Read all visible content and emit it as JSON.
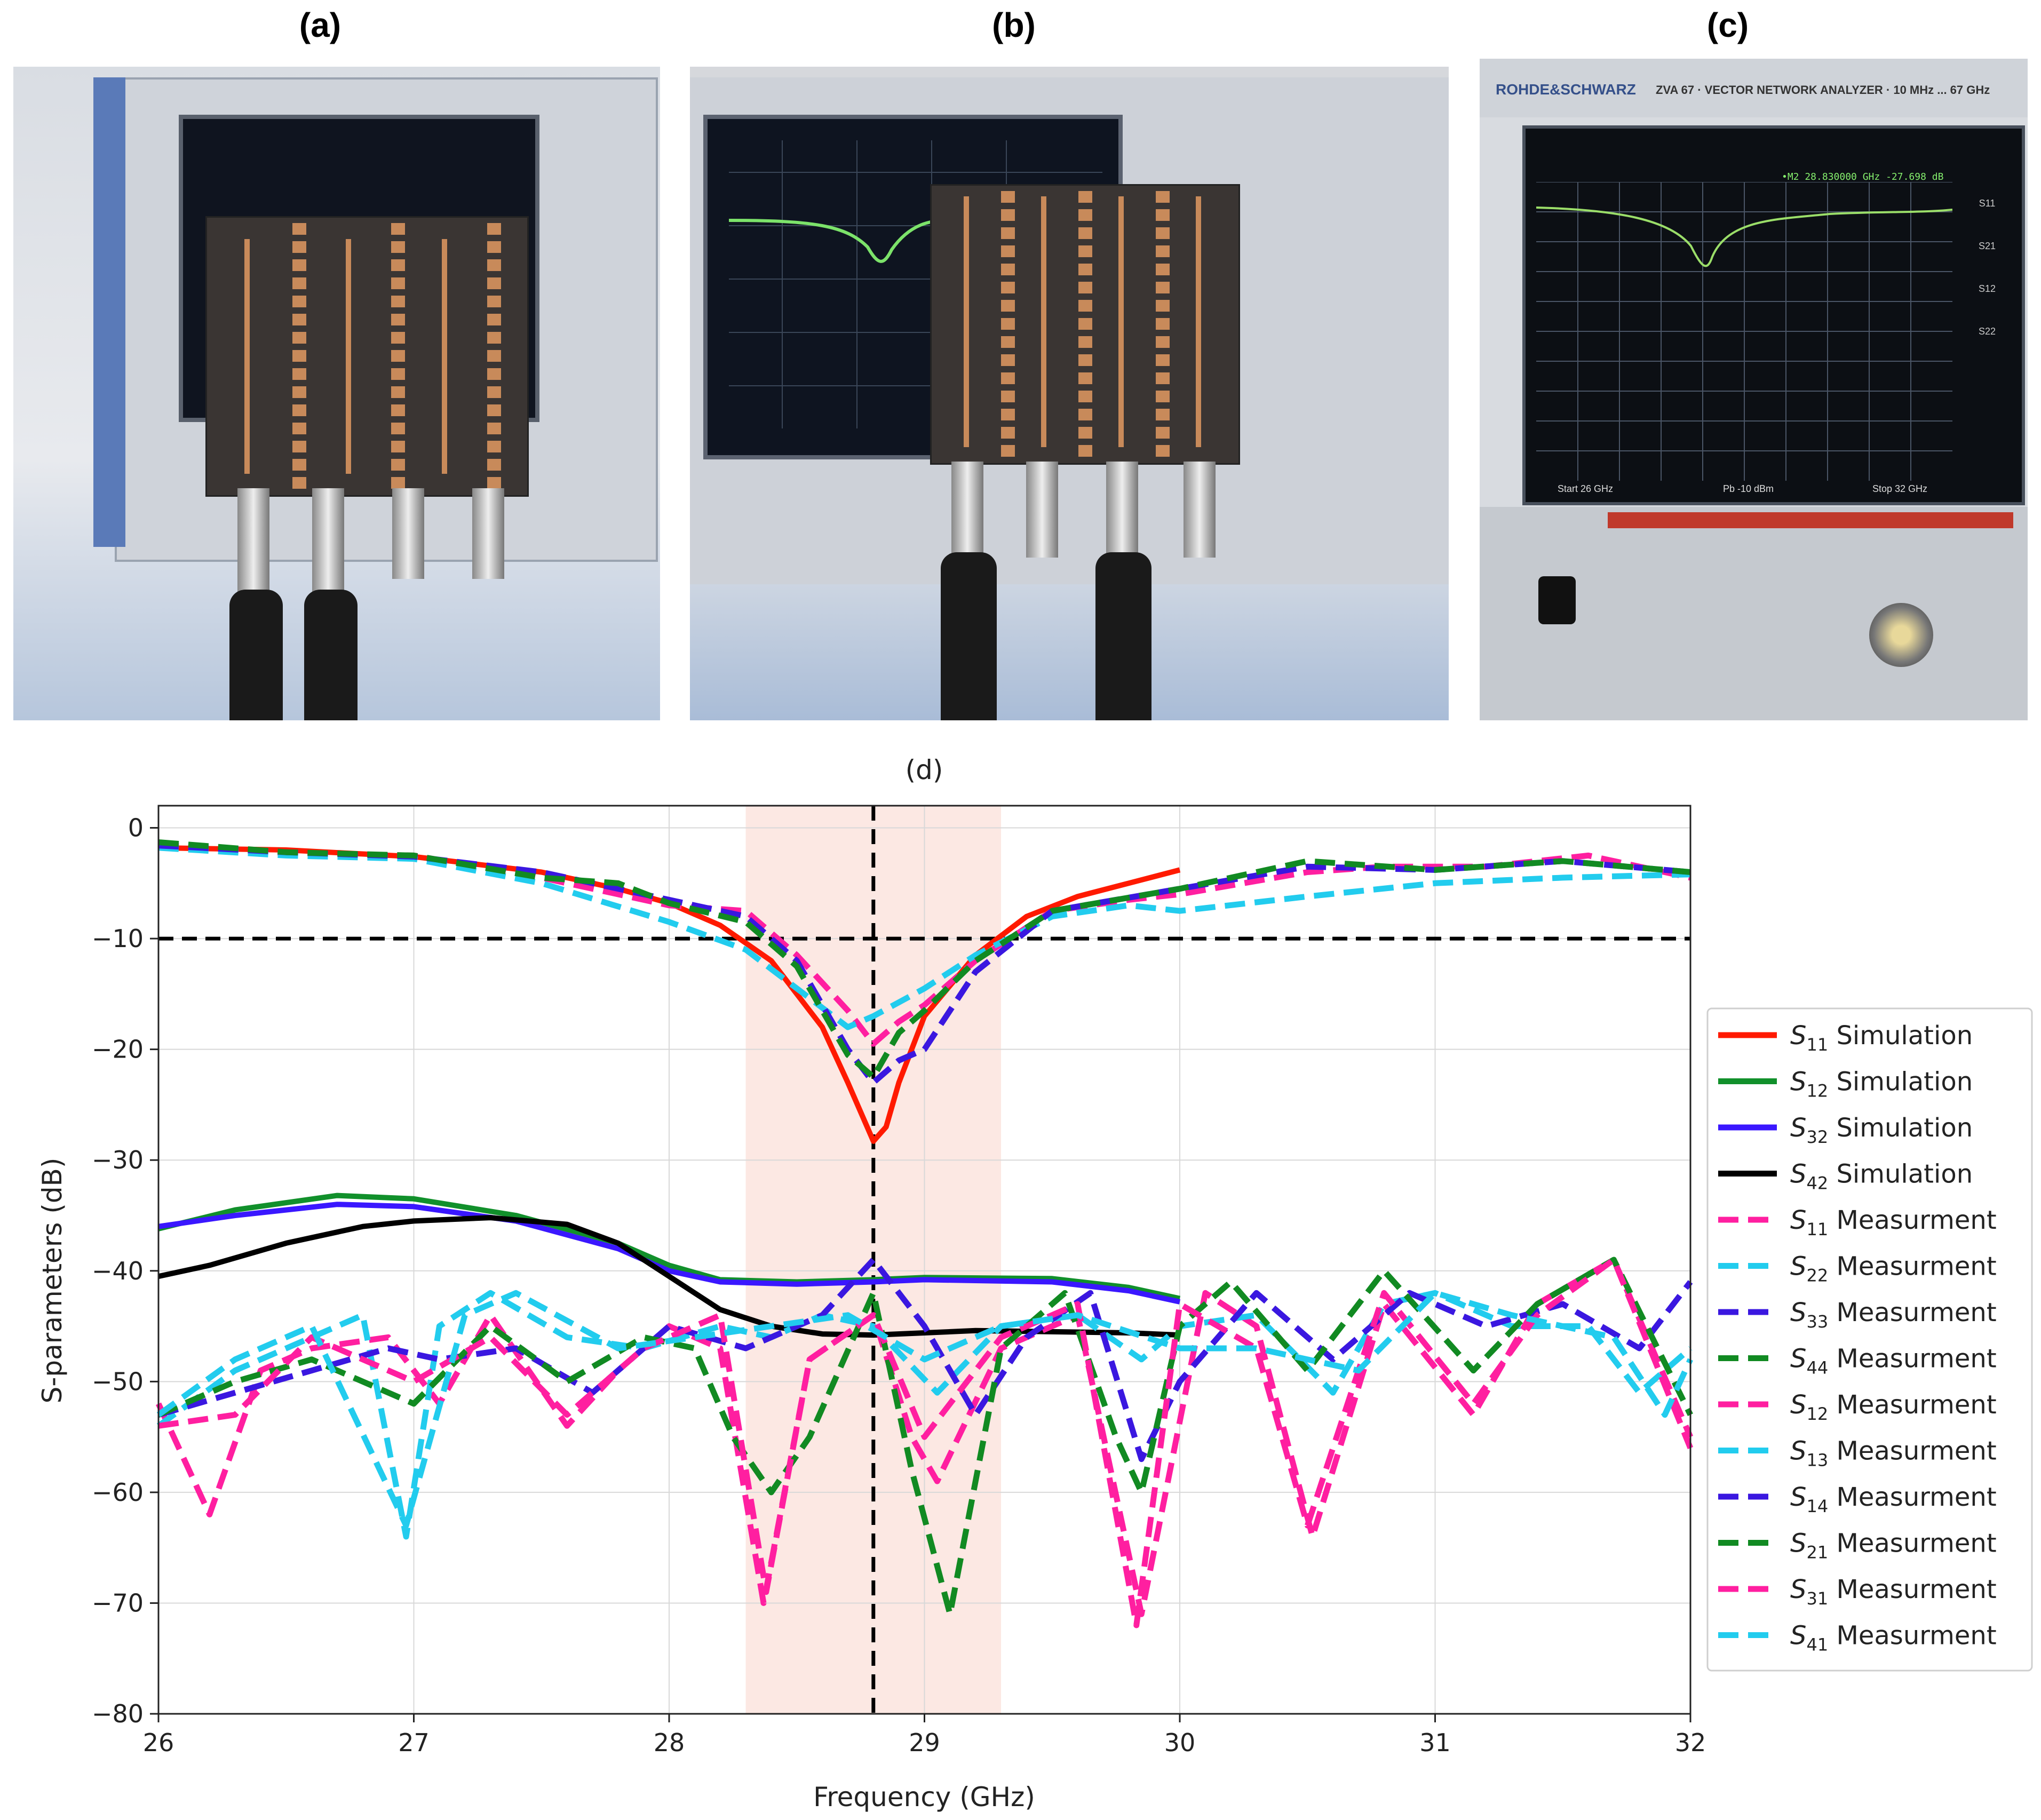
{
  "panels": {
    "a": {
      "label": "(a)"
    },
    "b": {
      "label": "(b)"
    },
    "c": {
      "label": "(c)"
    },
    "d": {
      "label": "(d)"
    }
  },
  "vna_screen": {
    "brand": "ROHDE&SCHWARZ",
    "model": "ZVA 67  ·  VECTOR NETWORK ANALYZER  ·  10 MHz ... 67 GHz",
    "marker": "•M2  28.830000 GHz  -27.698 dB",
    "start": "Start  26 GHz",
    "power": "Pb  -10 dBm",
    "stop": "Stop  32 GHz",
    "side_buttons": [
      "S11",
      "S21",
      "S12",
      "S22"
    ]
  },
  "colors": {
    "red": "#ff1a00",
    "green": "#11902b",
    "blue": "#3a17ff",
    "black": "#000000",
    "magenta": "#ff1fa0",
    "cyan": "#22ccee",
    "darkblue": "#3a17e0",
    "darkgreen": "#118a22",
    "band": "#fbe2dc"
  },
  "chart_data": {
    "type": "line",
    "title": "(d)",
    "xlabel": "Frequency (GHz)",
    "ylabel": "S-parameters (dB)",
    "xlim": [
      26,
      32
    ],
    "ylim": [
      -80,
      2
    ],
    "xticks": [
      26,
      27,
      28,
      29,
      30,
      31,
      32
    ],
    "yticks": [
      0,
      -10,
      -20,
      -30,
      -40,
      -50,
      -60,
      -70,
      -80
    ],
    "tick_labels_y": [
      "0",
      "−10",
      "−20",
      "−30",
      "−40",
      "−50",
      "−60",
      "−70",
      "−80"
    ],
    "tick_labels_x": [
      "26",
      "27",
      "28",
      "29",
      "30",
      "31",
      "32"
    ],
    "grid": true,
    "legend_position": "right",
    "shaded_band": [
      28.3,
      29.3
    ],
    "vline_x": 28.8,
    "hline_y": -10,
    "series": [
      {
        "name": "Simulation",
        "sub": "11",
        "style": "solid",
        "color": "red",
        "x": [
          26.0,
          26.5,
          27.0,
          27.5,
          27.8,
          28.0,
          28.2,
          28.4,
          28.6,
          28.7,
          28.8,
          28.85,
          28.9,
          29.0,
          29.2,
          29.4,
          29.6,
          29.8,
          30.0
        ],
        "y": [
          -1.8,
          -2.0,
          -2.6,
          -4.0,
          -5.5,
          -6.8,
          -8.8,
          -12,
          -18,
          -23,
          -28.3,
          -27,
          -23,
          -17,
          -11.5,
          -8,
          -6.2,
          -5,
          -3.8
        ]
      },
      {
        "name": "Simulation",
        "sub": "12",
        "style": "solid",
        "color": "green",
        "x": [
          26.0,
          26.3,
          26.7,
          27.0,
          27.4,
          27.8,
          28.0,
          28.2,
          28.5,
          28.8,
          29.0,
          29.5,
          29.8,
          30.0
        ],
        "y": [
          -36.2,
          -34.5,
          -33.2,
          -33.5,
          -35,
          -37.5,
          -39.5,
          -40.8,
          -41.0,
          -40.8,
          -40.6,
          -40.7,
          -41.5,
          -42.5
        ]
      },
      {
        "name": "Simulation",
        "sub": "32",
        "style": "solid",
        "color": "blue",
        "x": [
          26.0,
          26.3,
          26.7,
          27.0,
          27.4,
          27.8,
          28.0,
          28.2,
          28.5,
          28.8,
          29.0,
          29.5,
          29.8,
          30.0
        ],
        "y": [
          -36.0,
          -35.0,
          -34.0,
          -34.2,
          -35.5,
          -38.0,
          -40.0,
          -41.0,
          -41.2,
          -41.0,
          -40.8,
          -41.0,
          -41.8,
          -42.8
        ]
      },
      {
        "name": "Simulation",
        "sub": "42",
        "style": "solid",
        "color": "black",
        "x": [
          26.0,
          26.2,
          26.5,
          26.8,
          27.0,
          27.3,
          27.6,
          27.8,
          28.0,
          28.2,
          28.4,
          28.6,
          28.8,
          29.0,
          29.2,
          29.5,
          29.8,
          30.0
        ],
        "y": [
          -40.5,
          -39.5,
          -37.5,
          -36.0,
          -35.5,
          -35.2,
          -35.8,
          -37.5,
          -40.5,
          -43.5,
          -45.0,
          -45.7,
          -45.8,
          -45.6,
          -45.4,
          -45.5,
          -45.6,
          -45.8
        ]
      },
      {
        "name": "Measurment",
        "sub": "11",
        "style": "dash",
        "color": "magenta",
        "x": [
          26.0,
          26.5,
          27.0,
          27.5,
          27.8,
          28.0,
          28.3,
          28.5,
          28.7,
          28.8,
          28.9,
          29.0,
          29.2,
          29.5,
          29.8,
          30.0,
          30.5,
          30.8,
          31.2,
          31.6,
          32.0
        ],
        "y": [
          -1.5,
          -2.3,
          -2.5,
          -4.5,
          -6.0,
          -7.0,
          -7.5,
          -11.5,
          -16.5,
          -19.5,
          -17.5,
          -16.0,
          -12.0,
          -7.5,
          -6.5,
          -6.0,
          -4.0,
          -3.5,
          -3.5,
          -2.5,
          -4.5
        ]
      },
      {
        "name": "Measurment",
        "sub": "22",
        "style": "dash",
        "color": "cyan",
        "x": [
          26.0,
          26.5,
          27.0,
          27.5,
          28.0,
          28.3,
          28.5,
          28.7,
          28.8,
          29.0,
          29.2,
          29.5,
          29.8,
          30.0,
          30.5,
          31.0,
          31.5,
          32.0
        ],
        "y": [
          -1.8,
          -2.5,
          -2.8,
          -5.0,
          -8.5,
          -11.0,
          -14.5,
          -18.0,
          -17.0,
          -14.5,
          -11.5,
          -8.0,
          -7.0,
          -7.5,
          -6.2,
          -5.0,
          -4.5,
          -4.2
        ]
      },
      {
        "name": "Measurment",
        "sub": "33",
        "style": "dash",
        "color": "darkblue",
        "x": [
          26.0,
          26.5,
          27.0,
          27.5,
          28.0,
          28.3,
          28.5,
          28.7,
          28.8,
          28.9,
          29.0,
          29.2,
          29.5,
          30.0,
          30.5,
          31.0,
          31.5,
          32.0
        ],
        "y": [
          -1.6,
          -2.2,
          -2.6,
          -4.0,
          -6.5,
          -8.0,
          -12.0,
          -20.0,
          -23.0,
          -21.0,
          -20.0,
          -13.0,
          -7.5,
          -5.5,
          -3.5,
          -3.8,
          -3.0,
          -4.0
        ]
      },
      {
        "name": "Measurment",
        "sub": "44",
        "style": "dash",
        "color": "darkgreen",
        "x": [
          26.0,
          26.5,
          27.0,
          27.5,
          27.8,
          28.0,
          28.3,
          28.5,
          28.7,
          28.8,
          28.9,
          29.0,
          29.2,
          29.5,
          30.0,
          30.5,
          31.0,
          31.5,
          32.0
        ],
        "y": [
          -1.3,
          -2.2,
          -2.5,
          -4.5,
          -5.0,
          -6.8,
          -8.5,
          -12.5,
          -20.5,
          -22.5,
          -18.5,
          -16.5,
          -12.0,
          -7.5,
          -5.5,
          -3.0,
          -3.8,
          -3.0,
          -4.0
        ]
      },
      {
        "name": "Measurment",
        "sub": "12",
        "style": "dash",
        "color": "magenta",
        "x": [
          26.0,
          26.2,
          26.4,
          26.6,
          26.9,
          27.1,
          27.3,
          27.6,
          27.8,
          28.0,
          28.2,
          28.37,
          28.55,
          28.8,
          28.95,
          29.05,
          29.3,
          29.6,
          29.85,
          30.1,
          30.3,
          30.52,
          30.8,
          31.15,
          31.4,
          31.7,
          32.0
        ],
        "y": [
          -52,
          -62,
          -49,
          -47,
          -46,
          -52,
          -44,
          -54,
          -49,
          -45,
          -47,
          -70,
          -48,
          -44,
          -55,
          -59,
          -47,
          -44,
          -71,
          -42,
          -45,
          -64,
          -43,
          -53,
          -43,
          -39,
          -55
        ]
      },
      {
        "name": "Measurment",
        "sub": "13",
        "style": "dash",
        "color": "cyan",
        "x": [
          26.0,
          26.3,
          26.6,
          26.8,
          26.97,
          27.1,
          27.3,
          27.6,
          27.9,
          28.2,
          28.4,
          28.6,
          28.8,
          29.05,
          29.3,
          29.6,
          29.85,
          30.0,
          30.3,
          30.6,
          30.8,
          31.0,
          31.3,
          31.6,
          31.8,
          32.0
        ],
        "y": [
          -54,
          -49,
          -46,
          -44,
          -64,
          -45,
          -42,
          -46,
          -47,
          -45,
          -46,
          -44,
          -45,
          -51,
          -45,
          -44,
          -48,
          -45,
          -44,
          -51,
          -43,
          -42,
          -45,
          -45,
          -51,
          -47
        ]
      },
      {
        "name": "Measurment",
        "sub": "14",
        "style": "dash",
        "color": "darkblue",
        "x": [
          26.0,
          26.3,
          26.6,
          26.9,
          27.1,
          27.4,
          27.7,
          28.0,
          28.3,
          28.6,
          28.8,
          29.0,
          29.2,
          29.4,
          29.65,
          29.85,
          30.0,
          30.3,
          30.6,
          30.9,
          31.2,
          31.5,
          31.8,
          32.0
        ],
        "y": [
          -53,
          -51,
          -49,
          -47,
          -48,
          -47,
          -51,
          -45,
          -47,
          -44,
          -39,
          -45,
          -53,
          -46,
          -42,
          -57,
          -50,
          -42,
          -48,
          -42,
          -45,
          -43,
          -47,
          -41
        ]
      },
      {
        "name": "Measurment",
        "sub": "21",
        "style": "dash",
        "color": "darkgreen",
        "x": [
          26.0,
          26.3,
          26.6,
          27.0,
          27.3,
          27.6,
          27.9,
          28.1,
          28.25,
          28.4,
          28.55,
          28.8,
          28.95,
          29.1,
          29.3,
          29.55,
          29.75,
          29.85,
          30.0,
          30.2,
          30.5,
          30.8,
          31.15,
          31.4,
          31.7,
          32.0
        ],
        "y": [
          -53,
          -50,
          -48,
          -52,
          -45,
          -50,
          -46,
          -47,
          -55,
          -60,
          -55,
          -42,
          -58,
          -71,
          -47,
          -42,
          -55,
          -60,
          -45,
          -41,
          -49,
          -40,
          -49,
          -43,
          -39,
          -53
        ]
      },
      {
        "name": "Measurment",
        "sub": "31",
        "style": "dash",
        "color": "magenta",
        "x": [
          26.0,
          26.3,
          26.6,
          27.0,
          27.3,
          27.6,
          27.9,
          28.2,
          28.38,
          28.55,
          28.8,
          29.0,
          29.3,
          29.6,
          29.83,
          30.0,
          30.3,
          30.5,
          30.8,
          31.15,
          31.4,
          31.7,
          32.0
        ],
        "y": [
          -54,
          -53,
          -46,
          -50,
          -46,
          -53,
          -47,
          -44,
          -69,
          -48,
          -44,
          -55,
          -46,
          -43,
          -72,
          -43,
          -47,
          -63,
          -42,
          -52,
          -44,
          -39,
          -56
        ]
      },
      {
        "name": "Measurment",
        "sub": "41",
        "style": "dash",
        "color": "cyan",
        "x": [
          26.0,
          26.3,
          26.6,
          26.97,
          27.2,
          27.4,
          27.8,
          28.1,
          28.4,
          28.7,
          29.0,
          29.3,
          29.6,
          30.0,
          30.3,
          30.7,
          31.0,
          31.3,
          31.7,
          31.9,
          32.0
        ],
        "y": [
          -53,
          -48,
          -45,
          -63,
          -44,
          -42,
          -47,
          -46,
          -45,
          -44,
          -48,
          -45,
          -44,
          -47,
          -47,
          -49,
          -42,
          -44,
          -46,
          -53,
          -48
        ]
      }
    ]
  }
}
